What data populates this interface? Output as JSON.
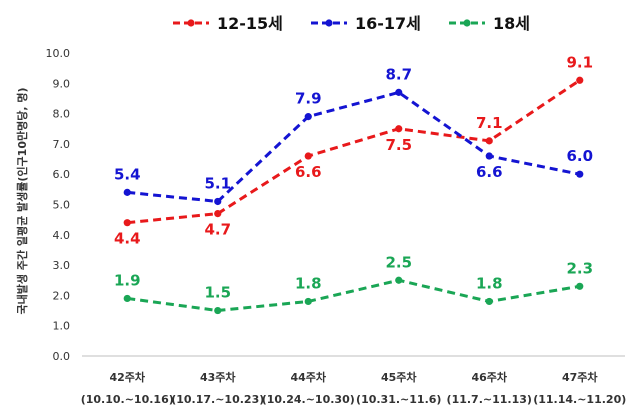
{
  "chart_data": {
    "type": "line",
    "title": "",
    "xlabel": "",
    "ylabel": "국내발생 주간 일평균 발생률(인구10만명당, 명)",
    "ylim": [
      0,
      10
    ],
    "yticks": [
      "0.0",
      "1.0",
      "2.0",
      "3.0",
      "4.0",
      "5.0",
      "6.0",
      "7.0",
      "8.0",
      "9.0",
      "10.0"
    ],
    "legend_position": "top",
    "grid": false,
    "categories": [
      {
        "week": "42주차",
        "range": "(10.10.~10.16)"
      },
      {
        "week": "43주차",
        "range": "(10.17.~10.23)"
      },
      {
        "week": "44주차",
        "range": "(10.24.~10.30)"
      },
      {
        "week": "45주차",
        "range": "(10.31.~11.6)"
      },
      {
        "week": "46주차",
        "range": "(11.7.~11.13)"
      },
      {
        "week": "47주차",
        "range": "(11.14.~11.20)"
      }
    ],
    "series": [
      {
        "name": "12-15세",
        "color": "#e8191b",
        "values": [
          4.4,
          4.7,
          6.6,
          7.5,
          7.1,
          9.1
        ],
        "labels": [
          "4.4",
          "4.7",
          "6.6",
          "7.5",
          "7.1",
          "9.1"
        ]
      },
      {
        "name": "16-17세",
        "color": "#1414d2",
        "values": [
          5.4,
          5.1,
          7.9,
          8.7,
          6.6,
          6.0
        ],
        "labels": [
          "5.4",
          "5.1",
          "7.9",
          "8.7",
          "6.6",
          "6.0"
        ]
      },
      {
        "name": "18세",
        "color": "#1aa655",
        "values": [
          1.9,
          1.5,
          1.8,
          2.5,
          1.8,
          2.3
        ],
        "labels": [
          "1.9",
          "1.5",
          "1.8",
          "2.5",
          "1.8",
          "2.3"
        ]
      }
    ]
  }
}
